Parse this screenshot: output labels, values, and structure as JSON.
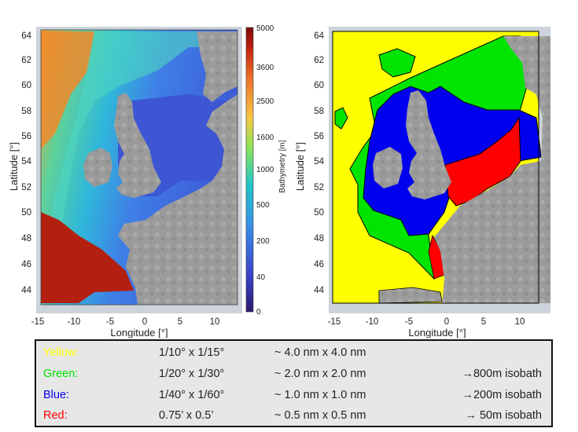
{
  "left_map": {
    "x_ticks": [
      "-15",
      "-10",
      "-5",
      "0",
      "5",
      "10"
    ],
    "y_ticks": [
      "44",
      "46",
      "48",
      "50",
      "52",
      "54",
      "56",
      "58",
      "60",
      "62",
      "64"
    ],
    "xlabel": "Longitude [°]",
    "ylabel": "Latitude [°]",
    "colorbar": {
      "label": "Bathymetry [m]",
      "ticks": [
        "5000",
        "3600",
        "2500",
        "1600",
        "1000",
        "500",
        "200",
        "40",
        "0"
      ]
    }
  },
  "right_map": {
    "x_ticks": [
      "-15",
      "-10",
      "-5",
      "0",
      "5",
      "10"
    ],
    "y_ticks": [
      "44",
      "46",
      "48",
      "50",
      "52",
      "54",
      "56",
      "58",
      "60",
      "62",
      "64"
    ],
    "xlabel": "Longitude [°]",
    "ylabel": "Latitude [°]"
  },
  "legend": {
    "rows": [
      {
        "name": "Yellow:",
        "color": "#ffff00",
        "resolution": "1/10° x 1/15°",
        "nm": "~ 4.0 nm x 4.0 nm",
        "isobath": ""
      },
      {
        "name": "Green:",
        "color": "#00e400",
        "resolution": "1/20° x 1/30°",
        "nm": "~ 2.0 nm x 2.0 nm",
        "isobath": "→800m isobath"
      },
      {
        "name": "Blue:",
        "color": "#0000ee",
        "resolution": "1/40° x 1/60°",
        "nm": "~ 1.0 nm x 1.0 nm",
        "isobath": "→200m isobath"
      },
      {
        "name": "Red:",
        "color": "#ff0000",
        "resolution": "0.75’ x 0.5’",
        "nm": "~ 0.5 nm x 0.5 nm",
        "isobath": "→  50m isobath"
      }
    ]
  }
}
